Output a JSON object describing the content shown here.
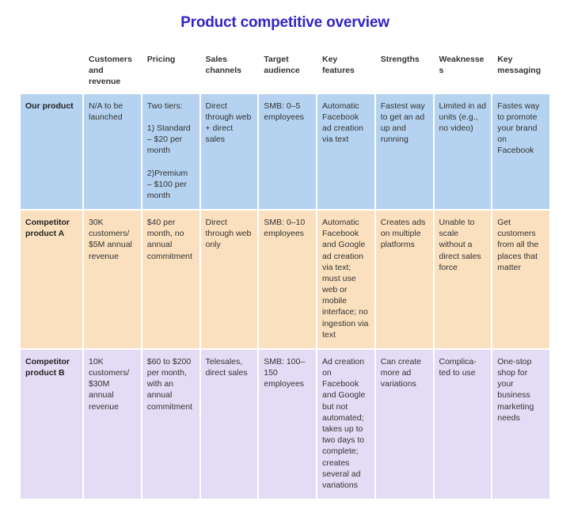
{
  "title": "Product competitive overview",
  "title_color": "#3324c7",
  "background_color": "#ffffff",
  "columns": [
    "Customers and revenue",
    "Pricing",
    "Sales channels",
    "Target audience",
    "Key features",
    "Strengths",
    "Weaknesses",
    "Key messaging"
  ],
  "rows": [
    {
      "label": "Our product",
      "bg_color": "#b5d3f0",
      "cells": [
        "N/A to be launched",
        "Two tiers:\n\n1) Standard – $20 per month\n\n2)Premium – $100 per month",
        "Direct through web + direct sales",
        "SMB: 0–5 employees",
        "Automatic Facebook ad creation via text",
        "Fastest way to get an ad up and running",
        "Limited in ad units (e.g., no video)",
        "Fastes way to promote your brand on Facebook"
      ]
    },
    {
      "label": "Competitor product A",
      "bg_color": "#fae0be",
      "cells": [
        "30K customers/ $5M annual revenue",
        "$40 per month, no annual commitment",
        "Direct through web only",
        "SMB: 0–10 employees",
        "Automatic Facebook and Google ad creation via text; must use web or mobile interface; no ingestion via text",
        "Creates ads on multiple platforms",
        "Unable to scale without a direct sales force",
        "Get customers from all the places that matter"
      ]
    },
    {
      "label": "Competitor product B",
      "bg_color": "#e4dbf4",
      "cells": [
        "10K customers/ $30M annual revenue",
        "$60 to $200 per month, with an annual commitment",
        "Telesales, direct sales",
        "SMB: 100–150 employees",
        "Ad creation on Facebook and Google but not automated; takes up to two days to complete; creates several ad variations",
        "Can create more ad variations",
        "Complica-ted to use",
        "One-stop shop for your business marketing needs"
      ]
    }
  ]
}
